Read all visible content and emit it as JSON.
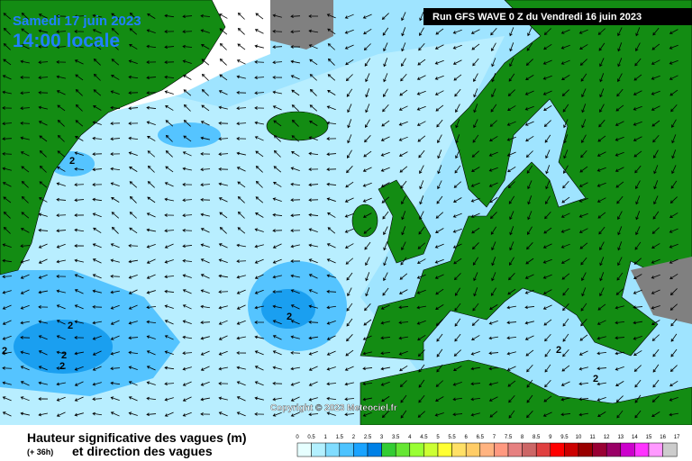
{
  "header": {
    "date": "Samedi 17 juin 2023",
    "time": "14:00 locale",
    "run": "Run GFS WAVE 0 Z du Vendredi 16 juin 2023"
  },
  "map": {
    "copyright": "Copyright © 2023 Meteociel.fr",
    "contour_labels": [
      "2",
      "2",
      "2",
      "2",
      "2",
      "2",
      "2",
      "2"
    ]
  },
  "footer": {
    "title": "Hauteur significative des vagues (m)",
    "forecast": "(+ 36h)",
    "subtitle": "et direction des vagues"
  },
  "legend": {
    "ticks": [
      0,
      0.5,
      1,
      1.5,
      2,
      2.5,
      3,
      3.5,
      4,
      4.5,
      5,
      5.5,
      6,
      6.5,
      7,
      7.5,
      8,
      8.5,
      9,
      9.5,
      10,
      11,
      12,
      13,
      14,
      15,
      16,
      17
    ],
    "colors": [
      "#e6ffff",
      "#b3f0ff",
      "#80dcff",
      "#4dc3ff",
      "#1aa3ff",
      "#0080e6",
      "#33cc33",
      "#66e633",
      "#99ff33",
      "#ccff33",
      "#ffff33",
      "#ffe066",
      "#ffcc66",
      "#ffb380",
      "#ff9980",
      "#e68080",
      "#cc6666",
      "#e04040",
      "#ff0000",
      "#cc0000",
      "#990000",
      "#990033",
      "#990066",
      "#cc00cc",
      "#ff33ff",
      "#ff99ff",
      "#cccccc"
    ]
  }
}
